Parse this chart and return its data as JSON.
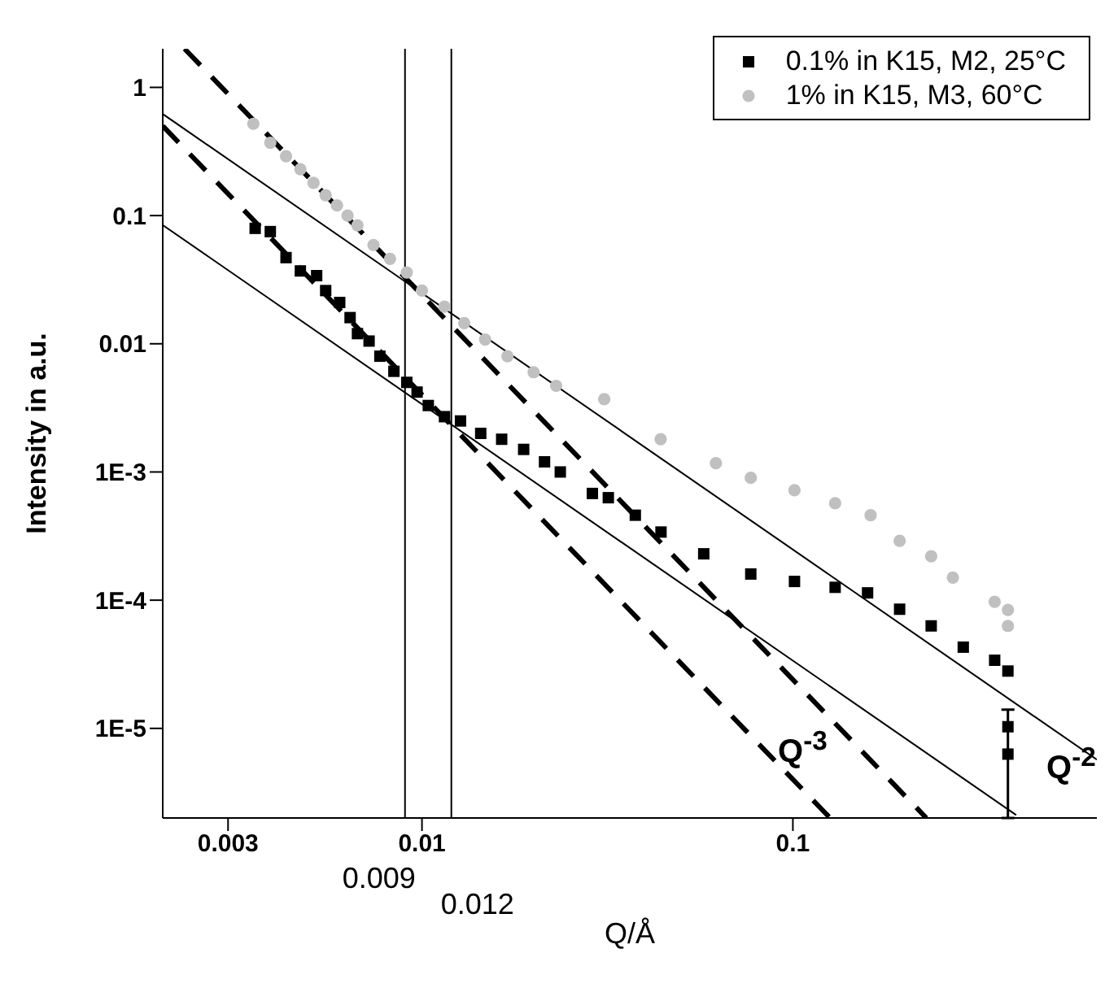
{
  "chart_data": {
    "type": "scatter",
    "xlabel": "Q/Å",
    "ylabel": "Intensity in a.u.",
    "log": "xy",
    "grid": false,
    "legend": "top right",
    "xlim": [
      0.002,
      0.66
    ],
    "xticks": [
      0.003,
      0.01,
      0.1
    ],
    "ylim": [
      2e-06,
      2
    ],
    "yticks": [
      1,
      0.1,
      0.01,
      {
        "value": 0.001,
        "label": "1E-3"
      },
      {
        "value": 0.0001,
        "label": "1E-4"
      },
      {
        "value": 1e-05,
        "label": "1E-5"
      }
    ],
    "series": [
      {
        "name": "0.1% in K15, M2, 25°C",
        "color": "#000000",
        "marker": "square",
        "x": [
          0.00355,
          0.0039,
          0.0043,
          0.0047,
          0.0052,
          0.0055,
          0.006,
          0.0064,
          0.0067,
          0.0072,
          0.0077,
          0.0084,
          0.0091,
          0.0097,
          0.0104,
          0.0115,
          0.0127,
          0.0144,
          0.0164,
          0.0188,
          0.0214,
          0.0236,
          0.0288,
          0.0318,
          0.0376,
          0.0441,
          0.0575,
          0.077,
          0.101,
          0.13,
          0.159,
          0.194,
          0.236,
          0.288,
          0.35,
          0.38,
          0.38,
          0.38
        ],
        "values": [
          0.0795,
          0.075,
          0.047,
          0.037,
          0.034,
          0.026,
          0.021,
          0.016,
          0.012,
          0.0105,
          0.008,
          0.0061,
          0.005,
          0.0042,
          0.0033,
          0.0027,
          0.0025,
          0.002,
          0.0018,
          0.0015,
          0.0012,
          0.001,
          0.00068,
          0.00063,
          0.00046,
          0.00034,
          0.00023,
          0.00016,
          0.00014,
          0.000126,
          0.000114,
          8.5e-05,
          6.3e-05,
          4.3e-05,
          3.4e-05,
          2.8e-05,
          1.03e-05,
          6.3e-06
        ],
        "errors": [
          null,
          null,
          null,
          null,
          null,
          null,
          null,
          null,
          null,
          null,
          null,
          null,
          null,
          null,
          null,
          null,
          null,
          null,
          null,
          null,
          null,
          null,
          null,
          null,
          null,
          null,
          null,
          null,
          null,
          null,
          null,
          null,
          null,
          null,
          null,
          null,
          [
            2e-06,
            1.4e-05
          ],
          null
        ]
      },
      {
        "name": "1% in K15, M3, 60°C",
        "color": "#c0c0c0",
        "marker": "circle",
        "x": [
          0.00351,
          0.0039,
          0.0043,
          0.0047,
          0.0051,
          0.0055,
          0.0059,
          0.0063,
          0.0067,
          0.0074,
          0.0082,
          0.0091,
          0.01,
          0.0115,
          0.013,
          0.0148,
          0.017,
          0.02,
          0.023,
          0.031,
          0.044,
          0.062,
          0.077,
          0.101,
          0.13,
          0.162,
          0.194,
          0.236,
          0.27,
          0.35,
          0.38,
          0.38
        ],
        "values": [
          0.52,
          0.37,
          0.29,
          0.23,
          0.18,
          0.144,
          0.12,
          0.1,
          0.084,
          0.059,
          0.046,
          0.036,
          0.026,
          0.0195,
          0.0145,
          0.0108,
          0.008,
          0.006,
          0.0047,
          0.0037,
          0.0018,
          0.00117,
          0.0009,
          0.00072,
          0.00057,
          0.00046,
          0.00029,
          0.00022,
          0.00015,
          9.7e-05,
          8.4e-05,
          6.3e-05
        ]
      },
      {
        "type": "line",
        "line_style": "solid",
        "color": "#000000",
        "marker": "none",
        "x": [
          0.002,
          0.66
        ],
        "values": [
          0.62,
          5.7e-06
        ]
      },
      {
        "type": "line",
        "line_style": "solid",
        "color": "#000000",
        "marker": "none",
        "x": [
          0.002,
          0.4
        ],
        "values": [
          0.0844,
          2.11e-06
        ]
      },
      {
        "type": "line",
        "line_style": "dashed",
        "color": "#000000",
        "marker": "none",
        "x": [
          0.00229,
          0.229
        ],
        "values": [
          2,
          2e-06
        ]
      },
      {
        "type": "line",
        "line_style": "dashed",
        "color": "#000000",
        "marker": "none",
        "x": [
          0.002,
          0.126
        ],
        "values": [
          0.5,
          2e-06
        ]
      }
    ],
    "ref_lines": [
      {
        "axis": "x",
        "value": 0.009,
        "label": "0.009",
        "color": "#000000"
      },
      {
        "axis": "x",
        "value": 0.012,
        "label": "0.012",
        "color": "#000000"
      }
    ],
    "annotations": [
      "Q$^{-3}$",
      "Q$^{-2}$"
    ]
  }
}
